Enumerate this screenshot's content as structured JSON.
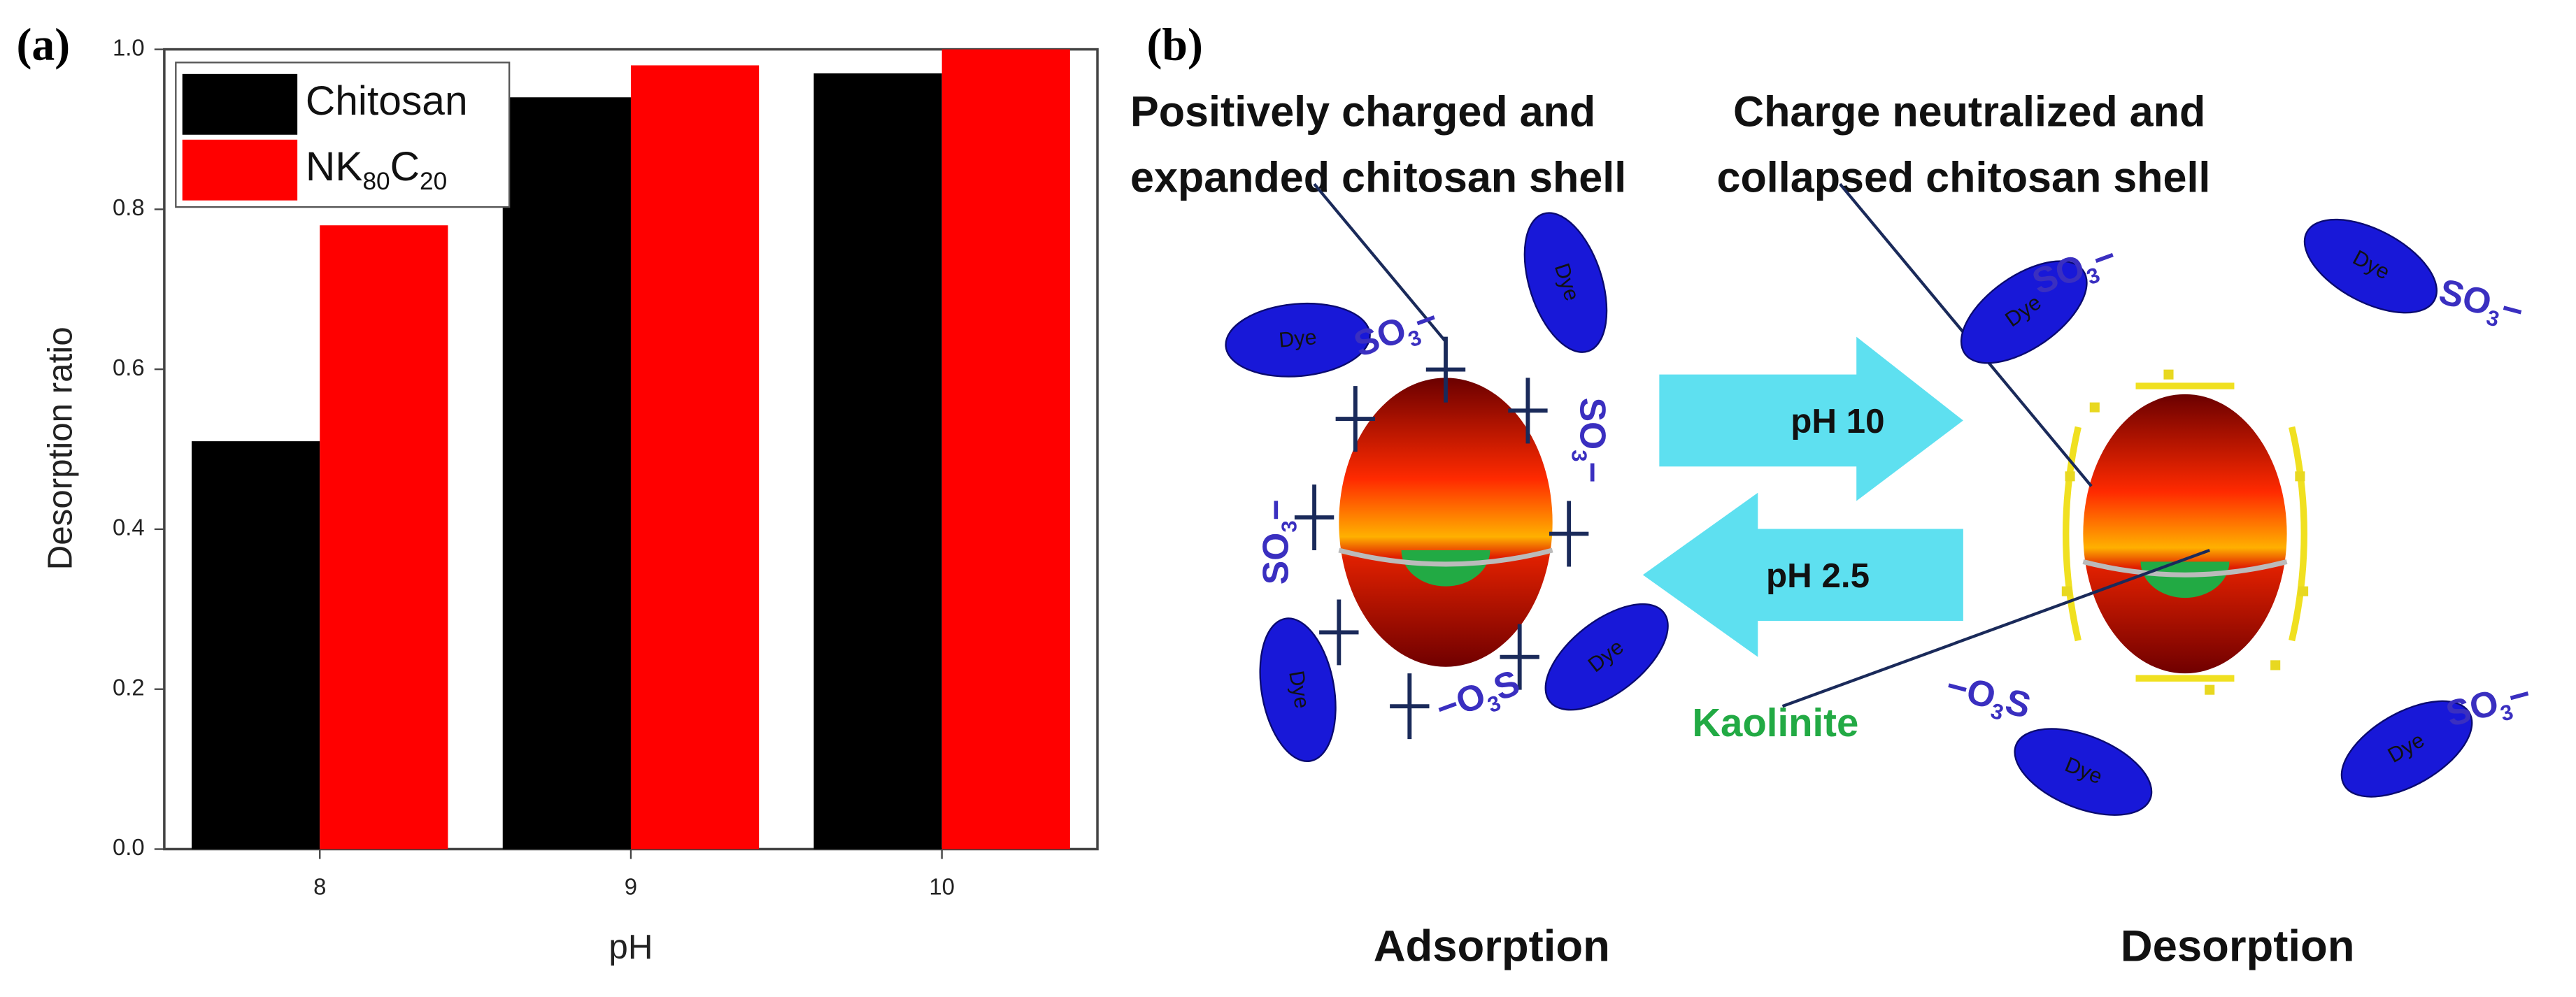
{
  "chart_data": {
    "type": "bar",
    "panel_label": "(a)",
    "categories": [
      "8",
      "9",
      "10"
    ],
    "series": [
      {
        "name": "Chitosan",
        "color": "#000000",
        "values": [
          0.51,
          0.94,
          0.97
        ]
      },
      {
        "name": "NK80C20",
        "color": "#ff0000",
        "values": [
          0.78,
          0.98,
          1.0
        ]
      }
    ],
    "ylim": [
      0,
      1.0
    ],
    "yticks": [
      {
        "value": 0,
        "label": "0.0"
      },
      0.2,
      0.4,
      0.6,
      0.8,
      {
        "value": 1.0,
        "label": "1.0"
      }
    ],
    "xlabel": "pH",
    "ylabel": "Desorption ratio",
    "legend": "upper left"
  },
  "diagram": {
    "panel_label": "(b)",
    "left_heading": [
      "Positively charged and",
      "expanded chitosan shell"
    ],
    "right_heading": [
      "Charge neutralized and",
      "collapsed chitosan shell"
    ],
    "forward_arrow": "pH  10",
    "backward_arrow": "pH 2.5",
    "kaolinite": "Kaolinite",
    "left_caption": "Adsorption",
    "right_caption": "Desorption",
    "dyes": [
      "Dye",
      "Dye",
      "Dye",
      "Dye",
      "Dye",
      "Dye",
      "Dye",
      "Dye"
    ],
    "groups": [
      "SO3−",
      "SO3−",
      "SO3−",
      "−O3S",
      "SO3−",
      "SO3−",
      "−O3S",
      "SO3−"
    ]
  }
}
